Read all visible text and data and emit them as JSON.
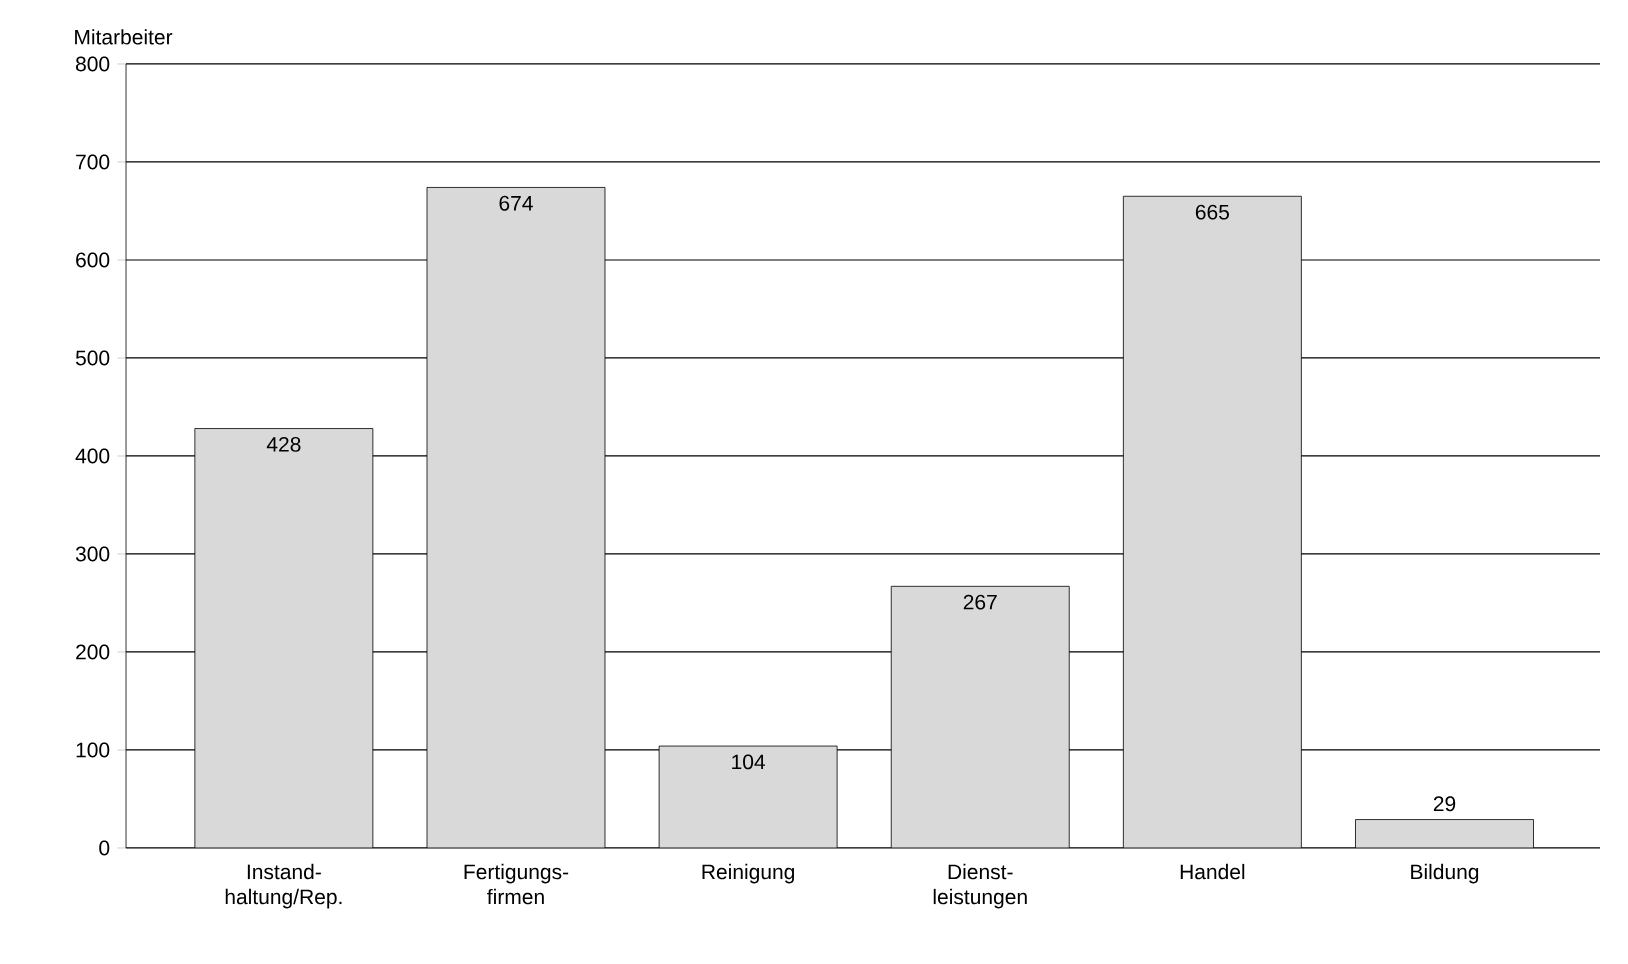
{
  "chart_data": {
    "type": "bar",
    "ylabel": "Mitarbeiter",
    "categories": [
      "Instand- haltung/Rep.",
      "Fertigungs- firmen",
      "Reinigung",
      "Dienst- leistungen",
      "Handel",
      "Bildung"
    ],
    "values": [
      428,
      674,
      104,
      267,
      665,
      29
    ],
    "color": "#d9d9d9",
    "ylim": [
      0,
      800
    ],
    "yticks": [
      0,
      100,
      200,
      300,
      400,
      500,
      600,
      700,
      800
    ],
    "grid": "y",
    "data_labels": true
  }
}
